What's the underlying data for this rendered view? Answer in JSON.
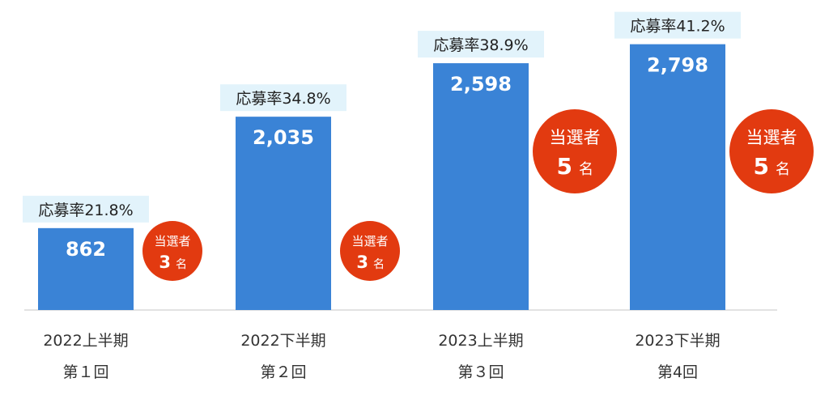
{
  "chart_data": {
    "type": "bar",
    "categories": [
      {
        "line1": "2022上半期",
        "line2": "第１回"
      },
      {
        "line1": "2022下半期",
        "line2": "第２回"
      },
      {
        "line1": "2023上半期",
        "line2": "第３回"
      },
      {
        "line1": "2023下半期",
        "line2": "第4回"
      }
    ],
    "values": [
      862,
      2035,
      2598,
      2798
    ],
    "value_labels": [
      "862",
      "2,035",
      "2,598",
      "2,798"
    ],
    "rate_labels": [
      "応募率21.8%",
      "応募率34.8%",
      "応募率38.9%",
      "応募率41.2%"
    ],
    "winners": [
      {
        "label": "当選者",
        "count": "3",
        "unit": "名"
      },
      {
        "label": "当選者",
        "count": "3",
        "unit": "名"
      },
      {
        "label": "当選者",
        "count": "5",
        "unit": "名"
      },
      {
        "label": "当選者",
        "count": "5",
        "unit": "名"
      }
    ],
    "ylim": [
      0,
      2880
    ],
    "grid": false,
    "colors": {
      "bar": "#3a83d6",
      "badge": "#e23a10",
      "rate_bg": "#e2f3fb"
    }
  }
}
